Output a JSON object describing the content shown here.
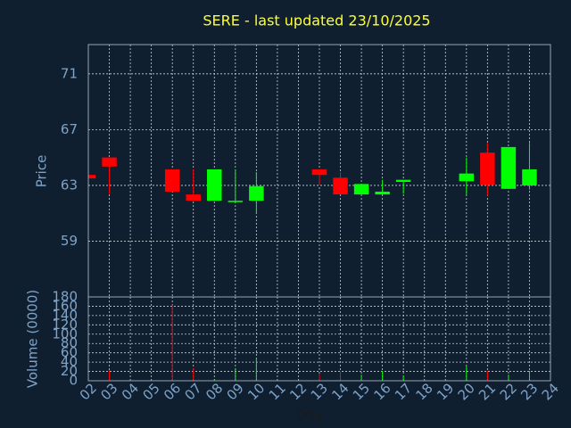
{
  "chart_data": {
    "type": "candlestick",
    "title": "SERE - last updated 23/10/2025",
    "x_label": "Day",
    "y_label": "Price",
    "volume_label": "Volume (0000)",
    "x": [
      2,
      3,
      6,
      7,
      8,
      9,
      10,
      13,
      14,
      15,
      16,
      17,
      20,
      21,
      22,
      23
    ],
    "open": [
      63.75,
      65.0,
      64.15,
      62.35,
      61.9,
      61.8,
      61.9,
      64.15,
      63.55,
      62.35,
      62.35,
      63.25,
      63.3,
      65.35,
      62.75,
      63.0
    ],
    "high": [
      63.75,
      65.0,
      64.15,
      64.15,
      64.15,
      64.15,
      63.95,
      64.15,
      63.95,
      63.1,
      63.4,
      63.4,
      65.0,
      66.05,
      65.75,
      66.05
    ],
    "low": [
      63.5,
      62.4,
      62.55,
      61.9,
      61.9,
      61.8,
      60.95,
      63.0,
      62.35,
      62.35,
      62.35,
      62.4,
      62.35,
      62.25,
      62.75,
      62.7
    ],
    "close": [
      63.5,
      64.35,
      62.55,
      61.9,
      64.15,
      61.9,
      62.95,
      63.75,
      62.35,
      63.1,
      62.55,
      63.4,
      63.85,
      63.05,
      65.75,
      64.15
    ],
    "volume": [
      5,
      23,
      163,
      27,
      2,
      27,
      48,
      15,
      19,
      13,
      21,
      11,
      31,
      21,
      13,
      21
    ],
    "up_color": "#00ff00",
    "down_color": "#ff0000",
    "xlim": [
      2,
      24
    ],
    "xticks": [
      {
        "value": 2,
        "label": "02"
      },
      {
        "value": 3,
        "label": "03"
      },
      {
        "value": 4,
        "label": "04"
      },
      {
        "value": 5,
        "label": "05"
      },
      {
        "value": 6,
        "label": "06"
      },
      {
        "value": 7,
        "label": "07"
      },
      {
        "value": 8,
        "label": "08"
      },
      {
        "value": 9,
        "label": "09"
      },
      10,
      11,
      12,
      13,
      14,
      15,
      16,
      17,
      18,
      19,
      20,
      21,
      22,
      23,
      24
    ],
    "ylim": [
      55,
      73.1
    ],
    "yticks": [
      59,
      63,
      67,
      71
    ],
    "volume_ylim": [
      0,
      180
    ],
    "volume_yticks": [
      0,
      20,
      40,
      60,
      80,
      100,
      120,
      140,
      160,
      180
    ],
    "grid": true
  }
}
